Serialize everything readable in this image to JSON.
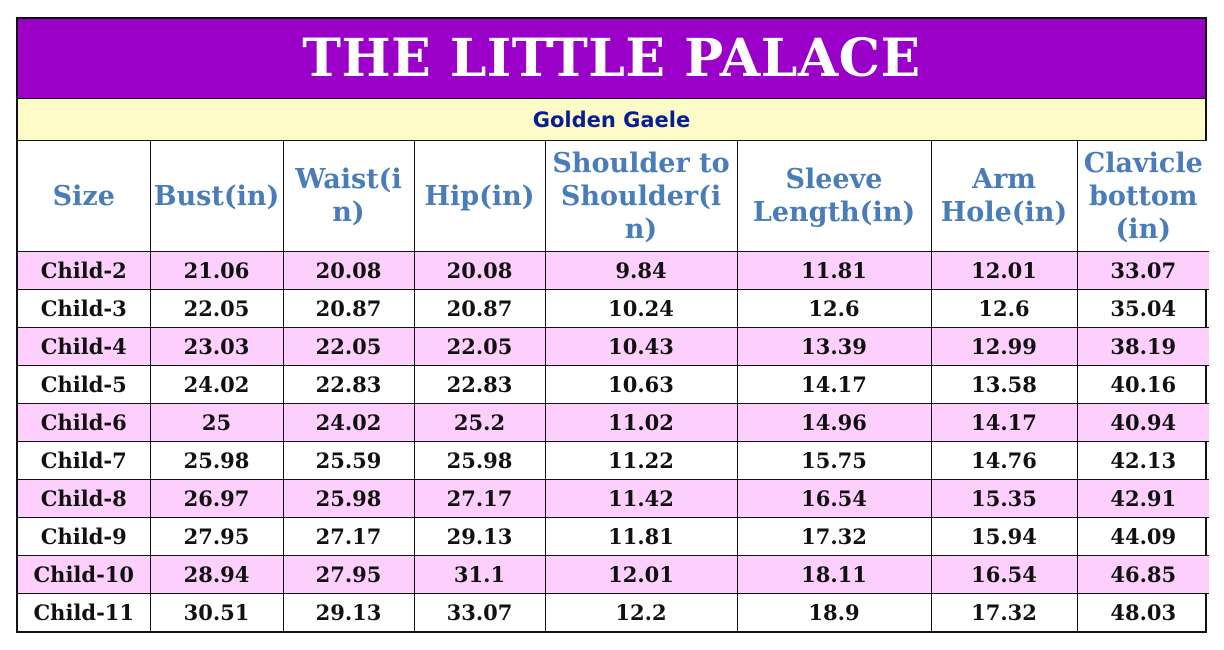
{
  "title": "THE LITTLE PALACE",
  "subtitle": "Golden Gaele",
  "colors": {
    "banner": "#9a00c8",
    "subtitle_bg": "#fdfbc8",
    "header_text": "#4a7db8",
    "stripe": "#fccffc"
  },
  "headers": [
    "Size",
    "Bust(in)",
    "Waist(in)",
    "Hip(in)",
    "Shoulder to Shoulder(in)",
    "Sleeve Length(in)",
    "Arm Hole(in)",
    "Clavicle bottom (in)"
  ],
  "rows": [
    [
      "Child-2",
      "21.06",
      "20.08",
      "20.08",
      "9.84",
      "11.81",
      "12.01",
      "33.07"
    ],
    [
      "Child-3",
      "22.05",
      "20.87",
      "20.87",
      "10.24",
      "12.6",
      "12.6",
      "35.04"
    ],
    [
      "Child-4",
      "23.03",
      "22.05",
      "22.05",
      "10.43",
      "13.39",
      "12.99",
      "38.19"
    ],
    [
      "Child-5",
      "24.02",
      "22.83",
      "22.83",
      "10.63",
      "14.17",
      "13.58",
      "40.16"
    ],
    [
      "Child-6",
      "25",
      "24.02",
      "25.2",
      "11.02",
      "14.96",
      "14.17",
      "40.94"
    ],
    [
      "Child-7",
      "25.98",
      "25.59",
      "25.98",
      "11.22",
      "15.75",
      "14.76",
      "42.13"
    ],
    [
      "Child-8",
      "26.97",
      "25.98",
      "27.17",
      "11.42",
      "16.54",
      "15.35",
      "42.91"
    ],
    [
      "Child-9",
      "27.95",
      "27.17",
      "29.13",
      "11.81",
      "17.32",
      "15.94",
      "44.09"
    ],
    [
      "Child-10",
      "28.94",
      "27.95",
      "31.1",
      "12.01",
      "18.11",
      "16.54",
      "46.85"
    ],
    [
      "Child-11",
      "30.51",
      "29.13",
      "33.07",
      "12.2",
      "18.9",
      "17.32",
      "48.03"
    ]
  ]
}
